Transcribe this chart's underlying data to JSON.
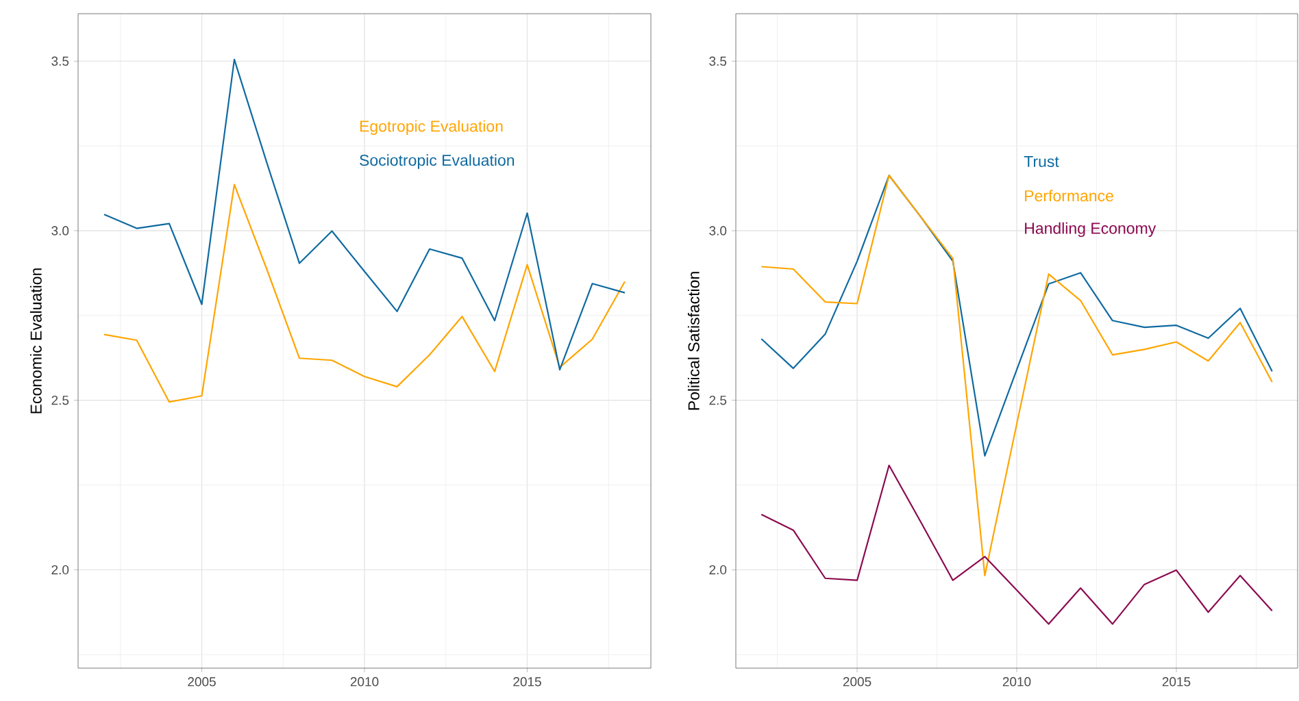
{
  "chart_data": [
    {
      "type": "line",
      "ylabel": "Economic Evaluation",
      "x": [
        2002,
        2003,
        2004,
        2005,
        2006,
        2007,
        2008,
        2009,
        2010,
        2011,
        2012,
        2013,
        2014,
        2015,
        2016,
        2017,
        2018
      ],
      "series": [
        {
          "name": "Egotropic Evaluation",
          "color": "#ffa500",
          "values": [
            2.694,
            2.677,
            2.495,
            2.513,
            3.136,
            2.886,
            2.624,
            2.618,
            2.57,
            2.54,
            2.634,
            2.747,
            2.585,
            2.9,
            2.597,
            2.68,
            2.85
          ]
        },
        {
          "name": "Sociotropic Evaluation",
          "color": "#0f6aa0",
          "values": [
            3.048,
            3.007,
            3.021,
            2.783,
            3.505,
            3.2,
            2.904,
            2.999,
            2.88,
            2.762,
            2.946,
            2.919,
            2.735,
            3.052,
            2.59,
            2.844,
            2.817
          ]
        }
      ],
      "xlim": [
        2001.2,
        2018.8
      ],
      "ylim": [
        1.71,
        3.64
      ],
      "xticks": [
        2005,
        2010,
        2015
      ],
      "yticks": [
        {
          "value": 2,
          "label": "2.0"
        },
        {
          "value": 2.5,
          "label": "2.5"
        },
        {
          "value": 3,
          "label": "3.0"
        },
        {
          "value": 3.5,
          "label": "3.5"
        }
      ],
      "grid": true,
      "line_style": "solid",
      "marker": "none"
    },
    {
      "type": "line",
      "ylabel": "Political Satisfaction",
      "x": [
        2002,
        2003,
        2004,
        2005,
        2006,
        2007,
        2008,
        2009,
        2010,
        2011,
        2012,
        2013,
        2014,
        2015,
        2016,
        2017,
        2018
      ],
      "series": [
        {
          "name": "Trust",
          "color": "#0f6aa0",
          "values": [
            2.681,
            2.594,
            2.695,
            2.91,
            3.163,
            3.04,
            2.91,
            2.336,
            2.59,
            2.843,
            2.876,
            2.735,
            2.715,
            2.721,
            2.683,
            2.771,
            2.585
          ]
        },
        {
          "name": "Performance",
          "color": "#ffa500",
          "values": [
            2.894,
            2.887,
            2.79,
            2.785,
            3.163,
            3.04,
            2.918,
            1.983,
            2.43,
            2.872,
            2.794,
            2.634,
            2.65,
            2.672,
            2.616,
            2.729,
            2.554
          ]
        },
        {
          "name": "Handling Economy",
          "color": "#8b0a50",
          "values": [
            2.163,
            2.117,
            1.975,
            1.969,
            2.308,
            2.14,
            1.969,
            2.039,
            1.94,
            1.84,
            1.946,
            1.84,
            1.957,
            1.999,
            1.875,
            1.983,
            1.879
          ]
        }
      ],
      "xlim": [
        2001.2,
        2018.8
      ],
      "ylim": [
        1.71,
        3.64
      ],
      "xticks": [
        2005,
        2010,
        2015
      ],
      "yticks": [
        {
          "value": 2,
          "label": "2.0"
        },
        {
          "value": 2.5,
          "label": "2.5"
        },
        {
          "value": 3,
          "label": "3.0"
        },
        {
          "value": 3.5,
          "label": "3.5"
        }
      ],
      "grid": true,
      "line_style": "solid",
      "marker": "none"
    }
  ]
}
